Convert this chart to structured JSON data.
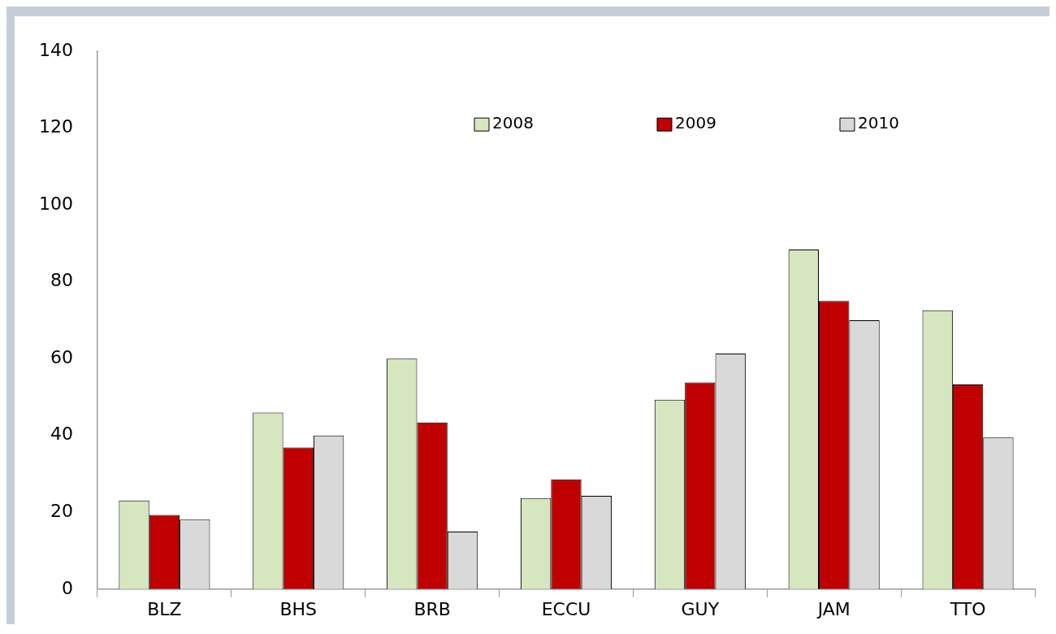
{
  "chart_data": {
    "type": "bar",
    "categories": [
      "BLZ",
      "BHS",
      "BRB",
      "ECCU",
      "GUY",
      "JAM",
      "TTO"
    ],
    "series": [
      {
        "name": "2008",
        "color": "#d6e6bf",
        "values": [
          23.1,
          46,
          60,
          23.7,
          49.3,
          88.4,
          72.6
        ]
      },
      {
        "name": "2009",
        "color": "#c00000",
        "values": [
          19.3,
          36.9,
          43.4,
          28.6,
          53.8,
          75,
          53.3
        ]
      },
      {
        "name": "2010",
        "color": "#d9d9d9",
        "values": [
          18.1,
          40,
          15,
          24.3,
          61.3,
          70,
          39.5
        ]
      }
    ],
    "ylim": [
      0,
      140
    ],
    "yticks": [
      0,
      20,
      40,
      60,
      80,
      100,
      120,
      140
    ],
    "grid": false,
    "legend": "top right"
  }
}
